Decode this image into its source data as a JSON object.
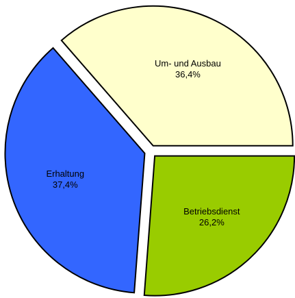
{
  "chart_data": {
    "type": "pie",
    "categories": [
      "Um- und Ausbau",
      "Erhaltung",
      "Betriebsdienst"
    ],
    "values": [
      36.4,
      37.4,
      26.2
    ],
    "value_labels": [
      "36,4%",
      "37,4%",
      "26,2%"
    ],
    "colors": [
      "#ffffcc",
      "#3366ff",
      "#99cc00"
    ]
  }
}
